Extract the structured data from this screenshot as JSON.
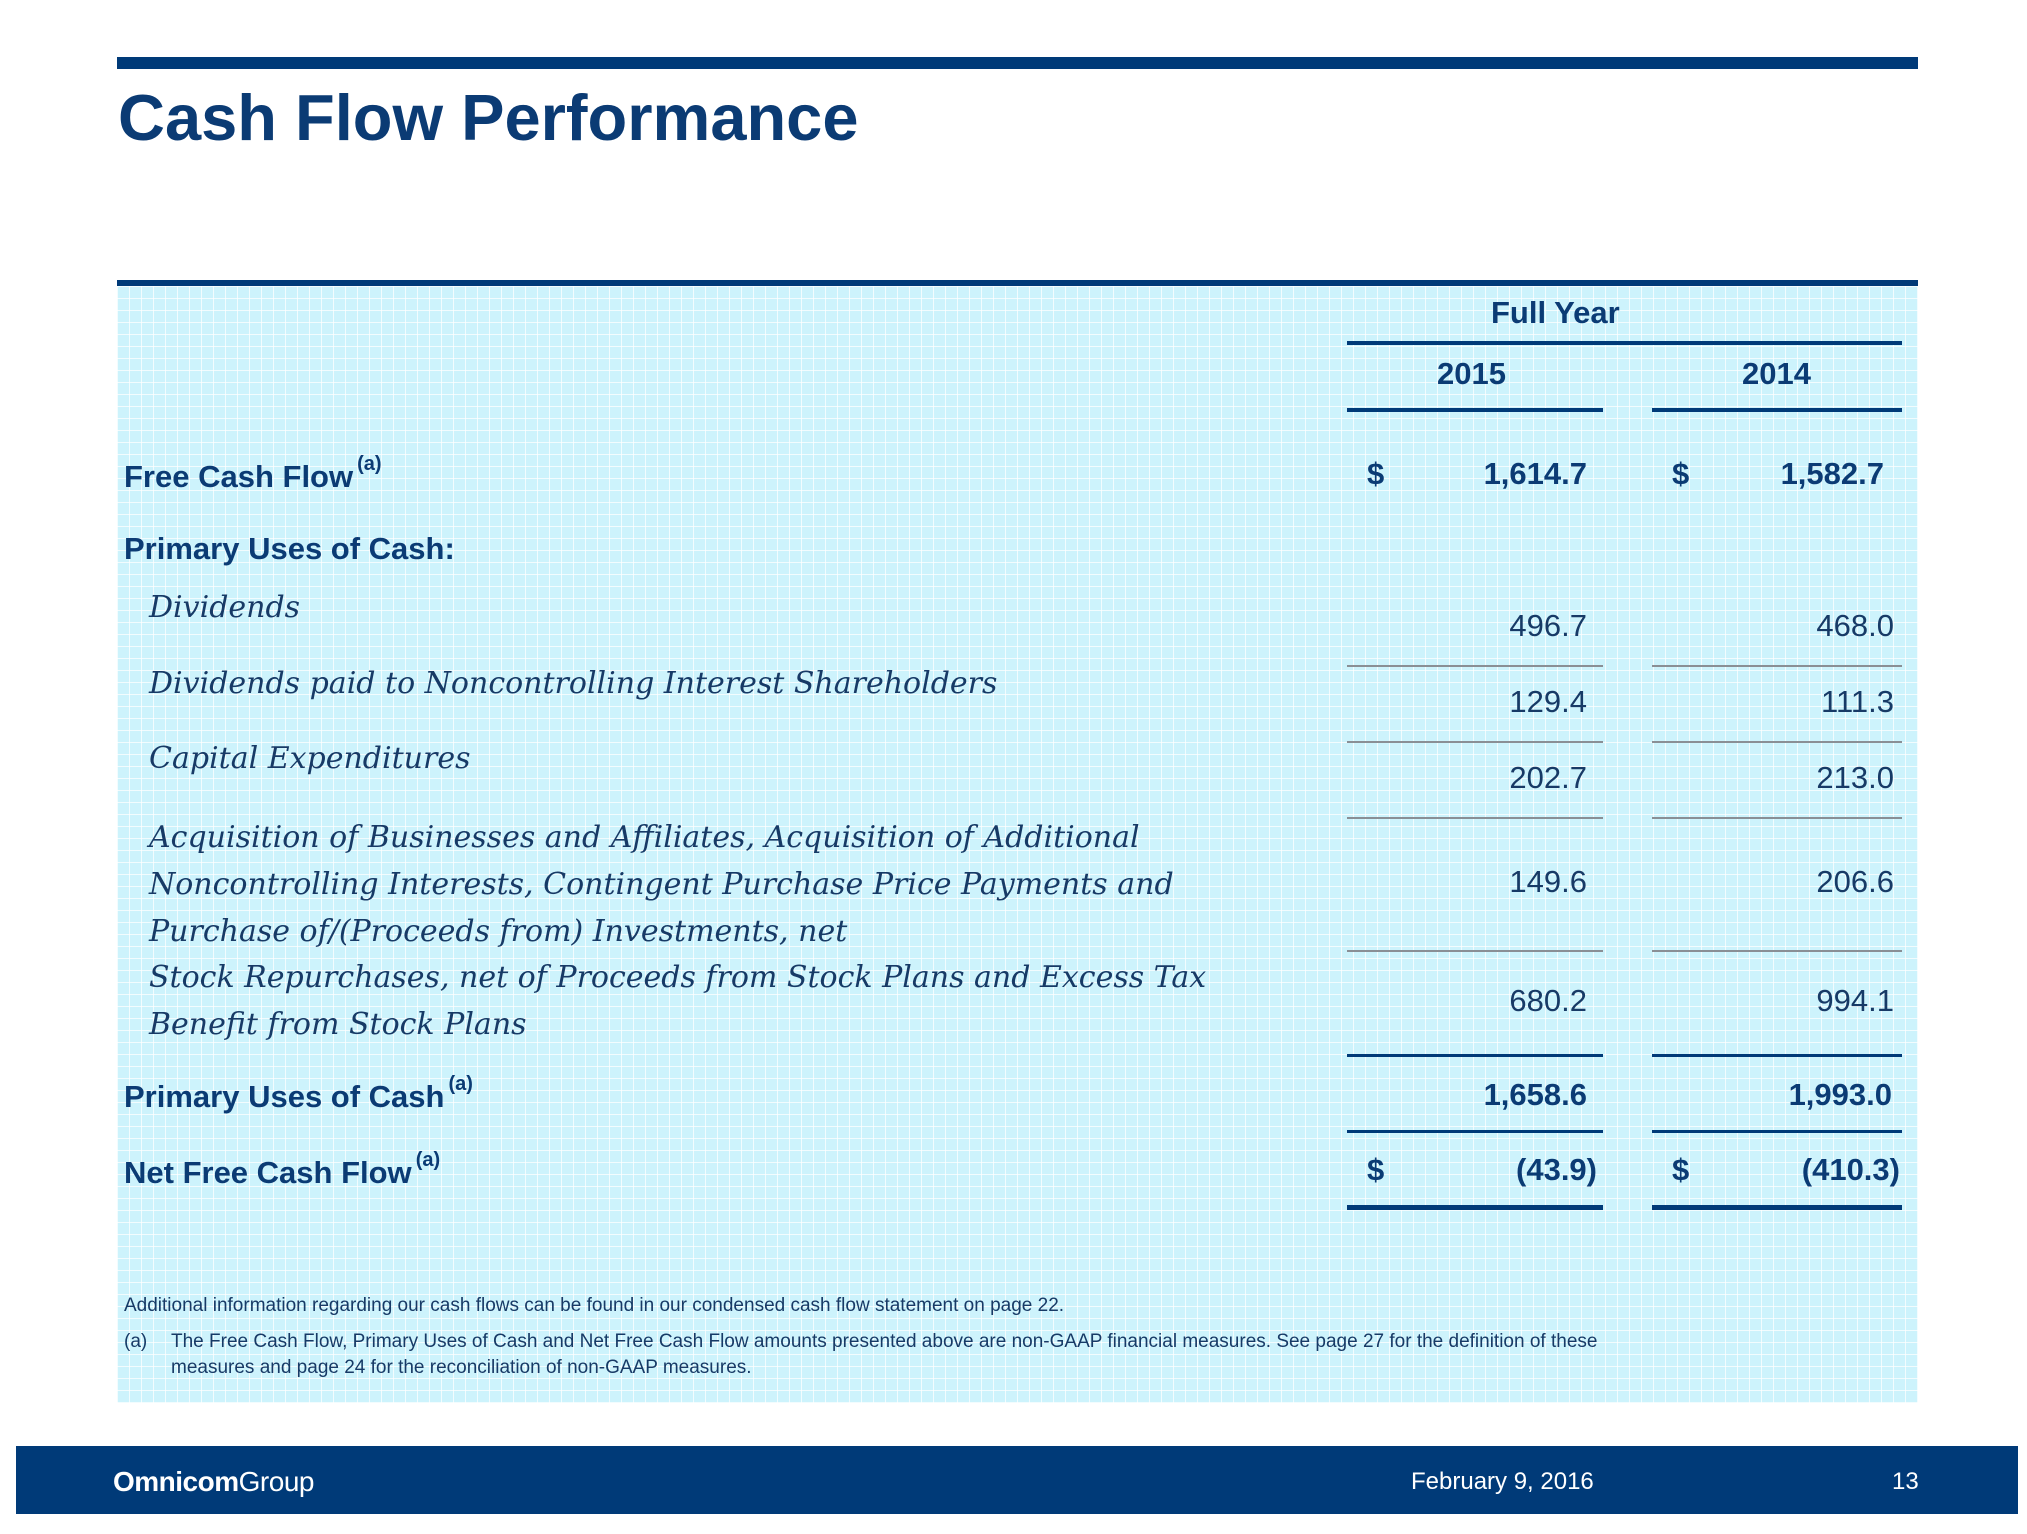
{
  "slide": {
    "title": "Cash Flow Performance",
    "table": {
      "group_header": "Full Year",
      "columns": [
        "2015",
        "2014"
      ],
      "currency_symbol": "$",
      "footnote_marker": "(a)",
      "rows": [
        {
          "label": "Free Cash Flow",
          "values": [
            "1,614.7",
            "1,582.7"
          ]
        },
        {
          "label": "Primary Uses of Cash:"
        },
        {
          "label": "Dividends",
          "values": [
            "496.7",
            "468.0"
          ]
        },
        {
          "label": "Dividends paid to Noncontrolling Interest Shareholders",
          "values": [
            "129.4",
            "111.3"
          ]
        },
        {
          "label": "Capital Expenditures",
          "values": [
            "202.7",
            "213.0"
          ]
        },
        {
          "label_lines": [
            "Acquisition of Businesses and Affiliates, Acquisition of Additional",
            "Noncontrolling Interests, Contingent Purchase Price Payments and",
            "Purchase of/(Proceeds from) Investments, net"
          ],
          "values": [
            "149.6",
            "206.6"
          ]
        },
        {
          "label_lines": [
            "Stock Repurchases, net of Proceeds from Stock Plans and Excess Tax",
            "Benefit from Stock Plans"
          ],
          "values": [
            "680.2",
            "994.1"
          ]
        },
        {
          "label": "Primary Uses of Cash",
          "values": [
            "1,658.6",
            "1,993.0"
          ]
        },
        {
          "label": "Net Free Cash Flow",
          "values": [
            "(43.9)",
            "(410.3)"
          ]
        }
      ]
    },
    "notes": {
      "additional_info": "Additional information regarding our cash flows can be found in our condensed cash flow statement on page 22.",
      "footnote_marker": "(a)",
      "footnote_lines": [
        "The Free Cash Flow, Primary Uses of Cash and Net Free Cash Flow amounts presented above are non-GAAP financial measures. See page 27 for the definition of these",
        "measures and page 24 for the reconciliation of non-GAAP measures."
      ]
    }
  },
  "footer": {
    "brand_bold": "Omnicom",
    "brand_regular": "Group",
    "date": "February 9, 2016",
    "page_number": "13"
  },
  "colors": {
    "brand_navy": "#003a78",
    "title_text": "#0b3b74",
    "panel_fill": "#cdf3fc"
  }
}
